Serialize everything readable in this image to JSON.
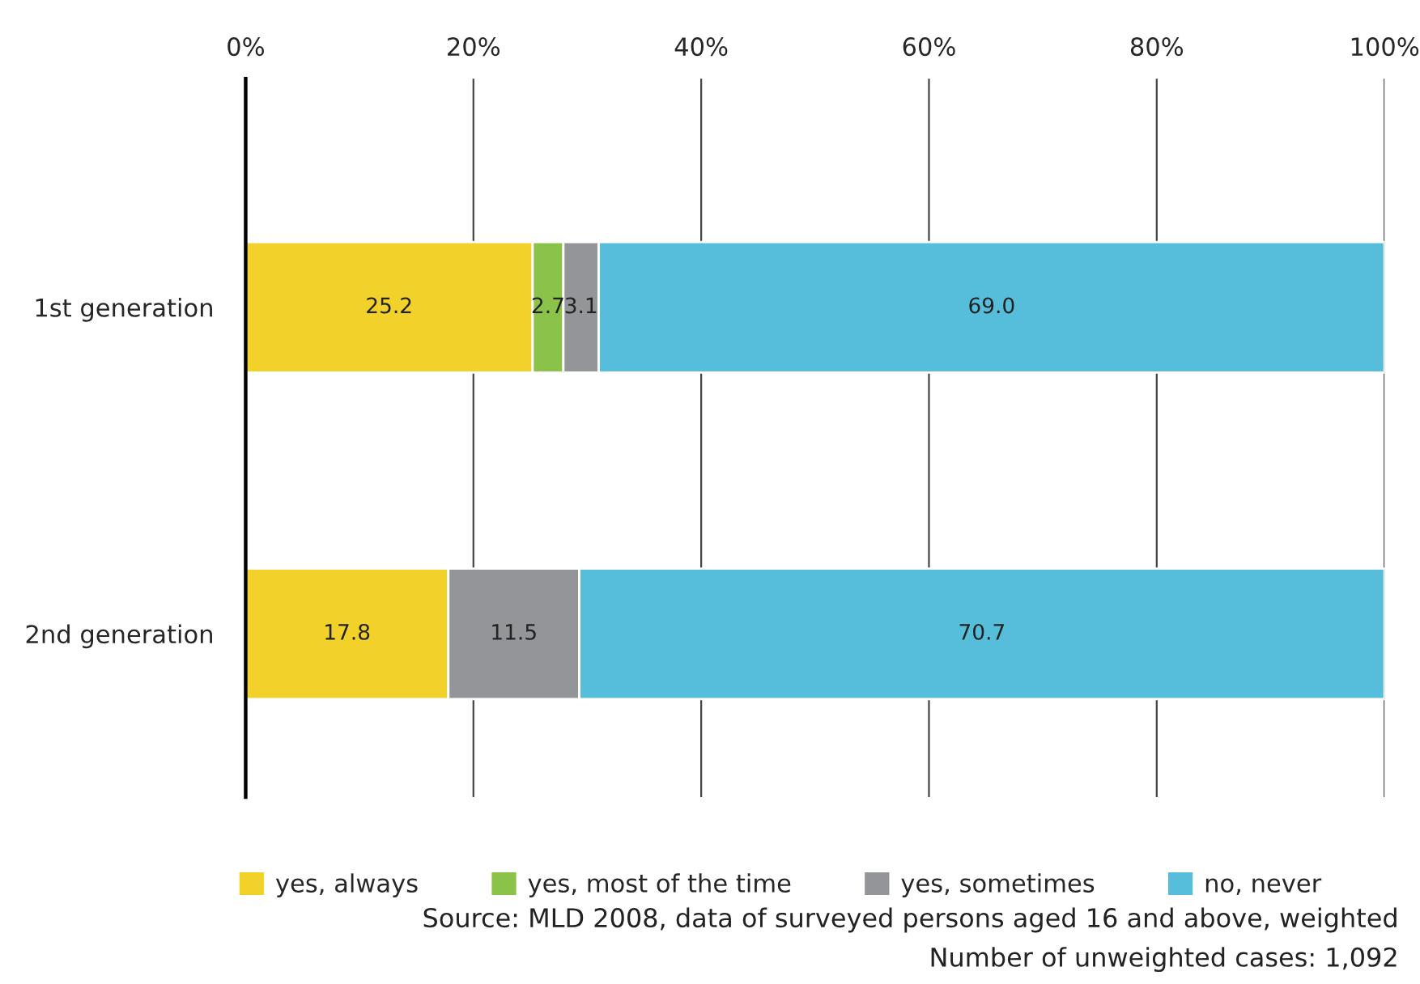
{
  "chart_data": {
    "type": "bar",
    "orientation": "horizontal",
    "stacked": true,
    "categories": [
      "1st generation",
      "2nd generation"
    ],
    "series": [
      {
        "name": "yes, always",
        "color": "#f2d12a",
        "values": [
          25.2,
          17.8
        ],
        "value_labels": [
          "25.2",
          "17.8"
        ]
      },
      {
        "name": "yes, most of the time",
        "color": "#8bc34a",
        "values": [
          2.7,
          null
        ],
        "value_labels": [
          "2.7",
          null
        ]
      },
      {
        "name": "yes, sometimes",
        "color": "#939598",
        "values": [
          3.1,
          11.5
        ],
        "value_labels": [
          "3.1",
          "11.5"
        ]
      },
      {
        "name": "no, never",
        "color": "#56bedb",
        "values": [
          69.0,
          70.7
        ],
        "value_labels": [
          "69.0",
          "70.7"
        ]
      }
    ],
    "xlim": [
      0,
      100
    ],
    "xticks": [
      {
        "value": 0,
        "label": "0%"
      },
      {
        "value": 20,
        "label": "20%"
      },
      {
        "value": 40,
        "label": "40%"
      },
      {
        "value": 60,
        "label": "60%"
      },
      {
        "value": 80,
        "label": "80%"
      },
      {
        "value": 100,
        "label": "100%"
      }
    ],
    "grid": "x",
    "legend": "bottom",
    "annotations": [
      "Source: MLD 2008, data of surveyed persons aged 16 and above, weighted",
      "Number of unweighted cases: 1,092"
    ]
  }
}
